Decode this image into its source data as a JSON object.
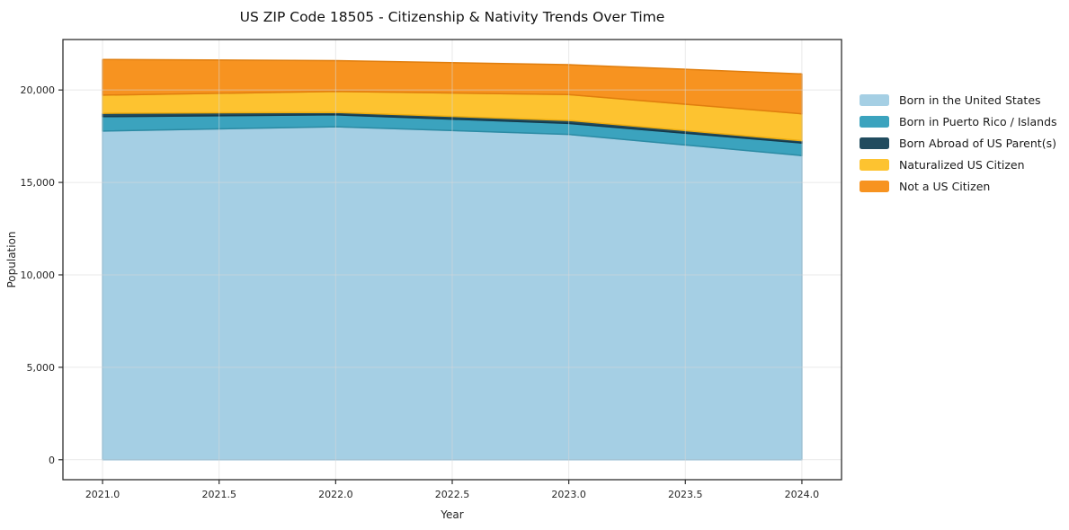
{
  "page": {
    "background_color": "#ffffff",
    "text_color": "#1a1a1a",
    "spine_color": "#2e2e2e",
    "grid_color": "#d8d8d8"
  },
  "chart_data": {
    "type": "area",
    "stacked": true,
    "title": "US ZIP Code 18505 - Citizenship & Nativity Trends Over Time",
    "xlabel": "Year",
    "ylabel": "Population",
    "x": [
      2021,
      2022,
      2023,
      2024
    ],
    "series": [
      {
        "name": "Born in the United States",
        "color": "#a5cfe4",
        "edge": "#7fb6d4",
        "values": [
          17780,
          18010,
          17600,
          16450
        ]
      },
      {
        "name": "Born in Puerto Rico / Islands",
        "color": "#3ba3be",
        "edge": "#2b8ba4",
        "values": [
          780,
          650,
          590,
          680
        ]
      },
      {
        "name": "Born Abroad of US Parent(s)",
        "color": "#214c5f",
        "edge": "#16394a",
        "values": [
          180,
          130,
          160,
          130
        ]
      },
      {
        "name": "Naturalized US Citizen",
        "color": "#fdc330",
        "edge": "#efae10",
        "values": [
          980,
          1130,
          1400,
          1450
        ]
      },
      {
        "name": "Not a US Citizen",
        "color": "#f79320",
        "edge": "#e07e0e",
        "values": [
          1930,
          1670,
          1620,
          2160
        ]
      }
    ],
    "totals": [
      21650,
      21590,
      21370,
      20870
    ],
    "xticks": {
      "values": [
        2021.0,
        2021.5,
        2022.0,
        2022.5,
        2023.0,
        2023.5,
        2024.0
      ],
      "labels": [
        "2021.0",
        "2021.5",
        "2022.0",
        "2022.5",
        "2023.0",
        "2023.5",
        "2024.0"
      ]
    },
    "yticks": {
      "values": [
        0,
        5000,
        10000,
        15000,
        20000
      ],
      "labels": [
        "0",
        "5,000",
        "10,000",
        "15,000",
        "20,000"
      ]
    },
    "xlim": [
      2020.83,
      2024.17
    ],
    "ylim": [
      -1080,
      22730
    ],
    "grid": true,
    "grid_above_fills": true,
    "legend_position": "right"
  }
}
